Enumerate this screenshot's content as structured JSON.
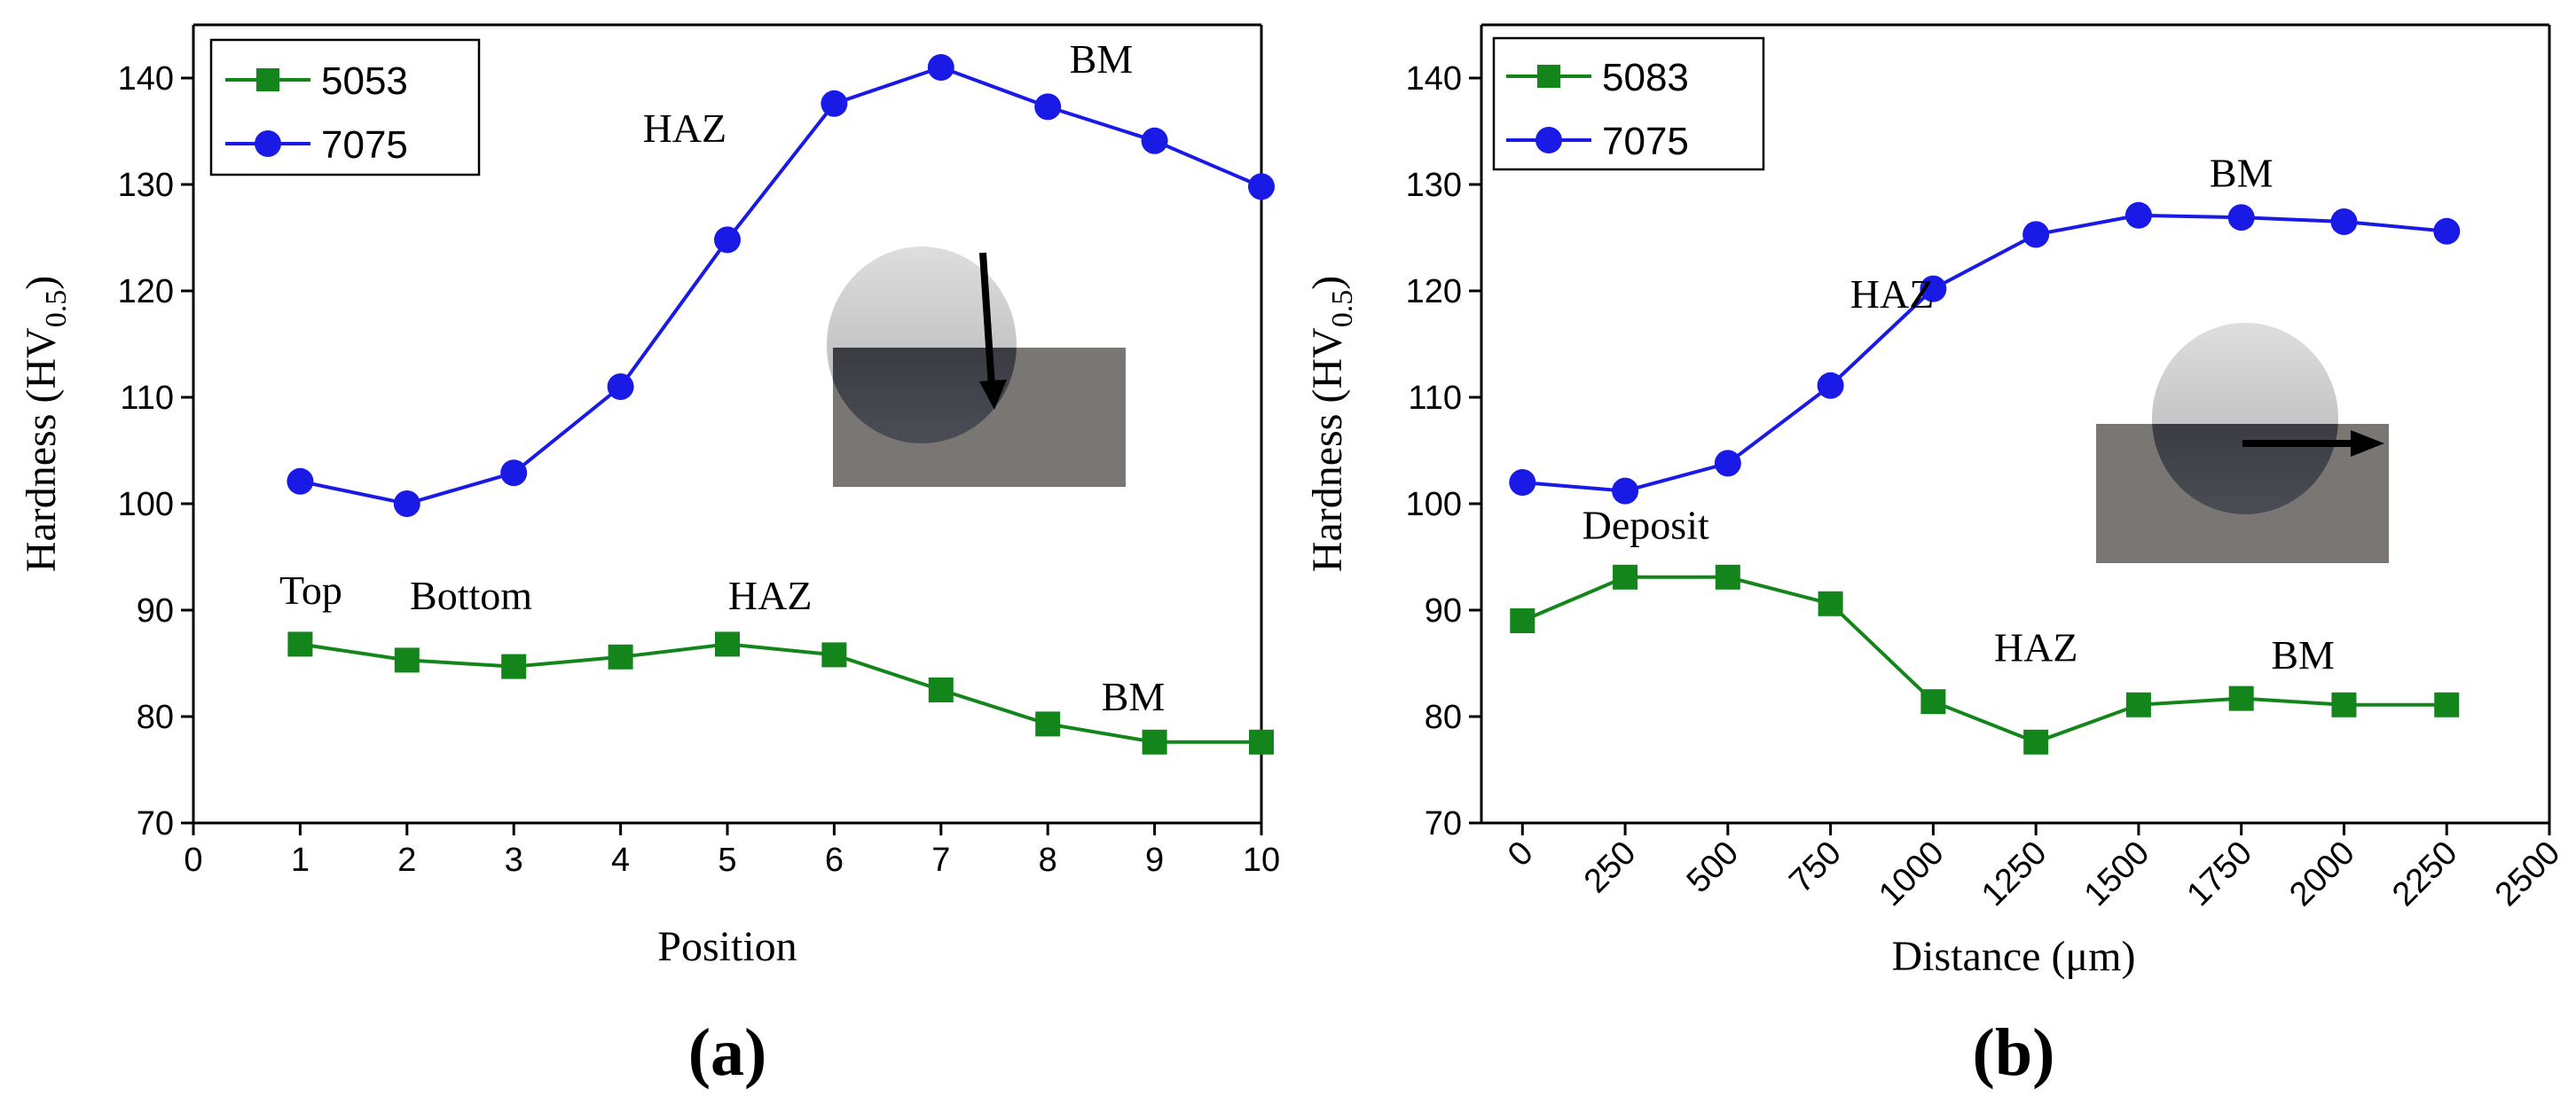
{
  "colors": {
    "green": "#13851a",
    "blue": "#1a1ae6"
  },
  "chart_data": [
    {
      "type": "line",
      "panel_label": "(a)",
      "xlabel": "Position",
      "ylabel": "Hardness (HV",
      "ylabel_sub": "0.5",
      "ylabel_close": ")",
      "xlim": [
        0,
        10
      ],
      "ylim": [
        70,
        145
      ],
      "xticks": [
        "0",
        "1",
        "2",
        "3",
        "4",
        "5",
        "6",
        "7",
        "8",
        "9",
        "10"
      ],
      "yticks": [
        "70",
        "80",
        "90",
        "100",
        "110",
        "120",
        "130",
        "140"
      ],
      "series": [
        {
          "name": "5053",
          "marker": "square",
          "color": "#13851a",
          "x": [
            1,
            2,
            3,
            4,
            5,
            6,
            7,
            8,
            9,
            10
          ],
          "values": [
            86.8,
            85.3,
            84.7,
            85.6,
            86.8,
            85.8,
            82.5,
            79.3,
            77.6,
            77.6
          ]
        },
        {
          "name": "7075",
          "marker": "circle",
          "color": "#1a1ae6",
          "x": [
            1,
            2,
            3,
            4,
            5,
            6,
            7,
            8,
            9,
            10
          ],
          "values": [
            102.1,
            100.0,
            102.9,
            111.0,
            124.8,
            137.6,
            141.0,
            137.3,
            134.1,
            129.8
          ]
        }
      ],
      "annotations": [
        {
          "text": "HAZ",
          "x": 4.6,
          "y": 134
        },
        {
          "text": "BM",
          "x": 8.5,
          "y": 140.5
        },
        {
          "text": "Top",
          "x": 1.1,
          "y": 90.6
        },
        {
          "text": "Bottom",
          "x": 2.6,
          "y": 90.1
        },
        {
          "text": "HAZ",
          "x": 5.4,
          "y": 90.1
        },
        {
          "text": "BM",
          "x": 8.8,
          "y": 80.6
        }
      ]
    },
    {
      "type": "line",
      "panel_label": "(b)",
      "xlabel": "Distance (μm)",
      "ylabel": "Hardness (HV",
      "ylabel_sub": "0.5",
      "ylabel_close": ")",
      "xlim": [
        -100,
        2500
      ],
      "ylim": [
        70,
        145
      ],
      "xticks": [
        "0",
        "250",
        "500",
        "750",
        "1000",
        "1250",
        "1500",
        "1750",
        "2000",
        "2250",
        "2500"
      ],
      "yticks": [
        "70",
        "80",
        "90",
        "100",
        "110",
        "120",
        "130",
        "140"
      ],
      "series": [
        {
          "name": "5083",
          "marker": "square",
          "color": "#13851a",
          "x": [
            0,
            250,
            500,
            750,
            1000,
            1250,
            1500,
            1750,
            2000,
            2250
          ],
          "values": [
            89.0,
            93.1,
            93.1,
            90.6,
            81.4,
            77.6,
            81.1,
            81.7,
            81.1,
            81.1
          ]
        },
        {
          "name": "7075",
          "marker": "circle",
          "color": "#1a1ae6",
          "x": [
            0,
            250,
            500,
            750,
            1000,
            1250,
            1500,
            1750,
            2000,
            2250
          ],
          "values": [
            102.0,
            101.2,
            103.8,
            111.1,
            120.2,
            125.3,
            127.1,
            126.9,
            126.5,
            125.6
          ]
        }
      ],
      "annotations": [
        {
          "text": "HAZ",
          "x": 900,
          "y": 118.4
        },
        {
          "text": "BM",
          "x": 1750,
          "y": 129.8
        },
        {
          "text": "Deposit",
          "x": 300,
          "y": 96.7
        },
        {
          "text": "HAZ",
          "x": 1250,
          "y": 85.2
        },
        {
          "text": "BM",
          "x": 1900,
          "y": 84.5
        }
      ]
    }
  ]
}
